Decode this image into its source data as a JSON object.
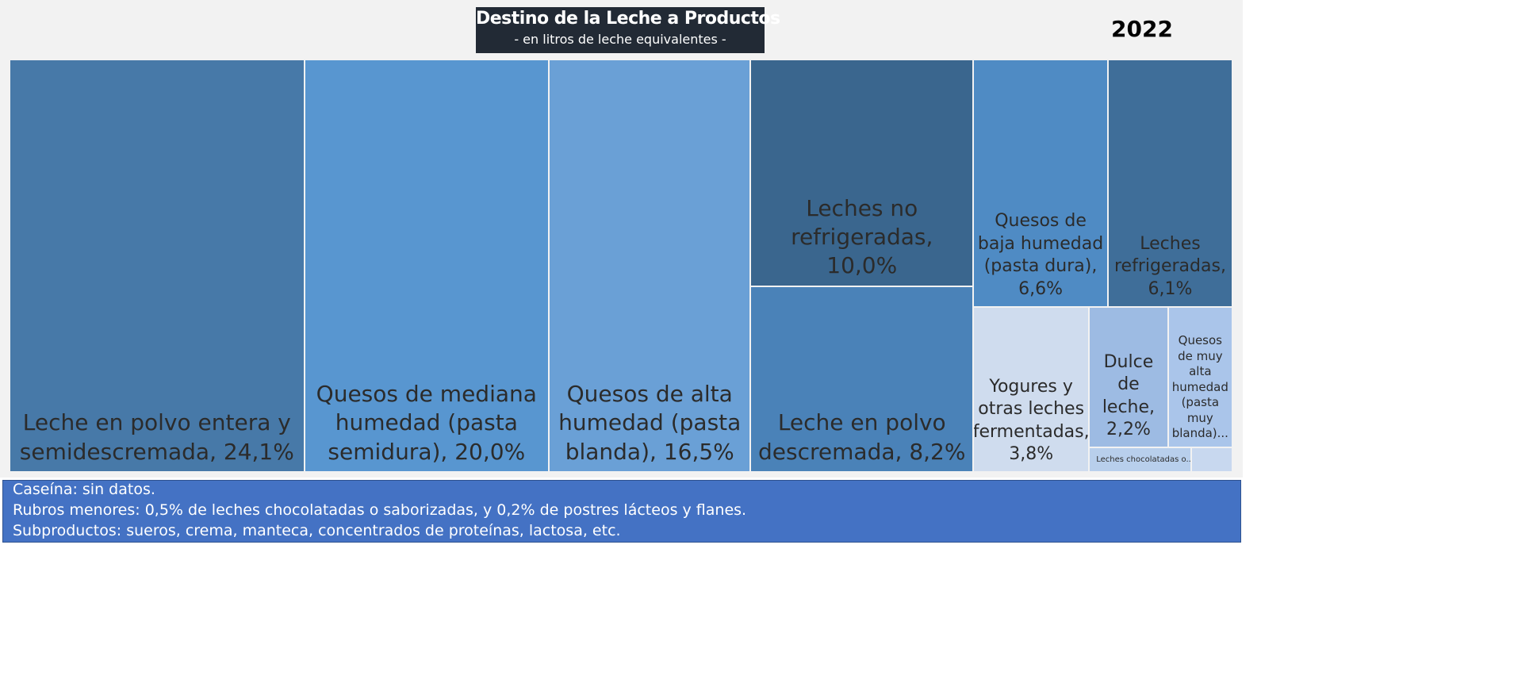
{
  "chart_data": {
    "type": "treemap",
    "title": "Destino de la Leche a Productos",
    "subtitle": "- en litros de leche equivalentes -",
    "annotation": "2022",
    "categories": [
      "Leche en polvo entera y semidescremada",
      "Quesos de mediana humedad (pasta semidura)",
      "Quesos de alta humedad (pasta blanda)",
      "Leches no refrigeradas",
      "Leche en polvo descremada",
      "Quesos de baja humedad (pasta dura)",
      "Leches refrigeradas",
      "Yogures y otras leches fermentadas",
      "Dulce de leche",
      "Quesos de muy alta humedad (pasta muy blanda)...",
      "Leches chocolatadas o...",
      null
    ],
    "values": [
      24.1,
      20.0,
      16.5,
      10.0,
      8.2,
      6.6,
      6.1,
      3.8,
      2.2,
      1.8,
      0.5,
      0.2
    ],
    "value_labels": [
      "24,1%",
      "20,0%",
      "16,5%",
      "10,0%",
      "8,2%",
      "6,6%",
      "6,1%",
      "3,8%",
      "2,2%",
      null,
      null,
      null
    ],
    "colors": [
      "#4779a8",
      "#5896d0",
      "#6aa0d6",
      "#3a668e",
      "#4a82b8",
      "#4f8bc4",
      "#3f6e99",
      "#cfdcee",
      "#9dbbe3",
      "#aac5ea",
      "#b8cfec",
      "#c8d8ef"
    ],
    "notes": [
      "Caseína: sin datos.",
      "Rubros menores: 0,5% de leches chocolatadas o saborizadas, y 0,2% de postres lácteos y flanes.",
      "Subproductos: sueros, crema, manteca, concentrados de proteínas, lactosa, etc."
    ]
  }
}
